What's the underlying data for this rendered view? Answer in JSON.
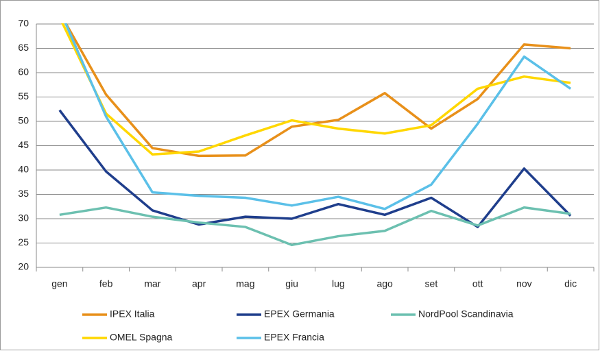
{
  "chart_data": {
    "type": "line",
    "categories": [
      "gen",
      "feb",
      "mar",
      "apr",
      "mag",
      "giu",
      "lug",
      "ago",
      "set",
      "ott",
      "nov",
      "dic"
    ],
    "series": [
      {
        "name": "IPEX Italia",
        "color": "#e8901a",
        "values": [
          72.4,
          55.5,
          44.5,
          42.9,
          43.0,
          48.9,
          50.3,
          55.8,
          48.5,
          54.6,
          65.8,
          65.0
        ]
      },
      {
        "name": "EPEX Germania",
        "color": "#1f3e8c",
        "values": [
          52.3,
          39.7,
          31.7,
          28.8,
          30.4,
          30.0,
          33.0,
          30.8,
          34.3,
          28.3,
          40.3,
          30.6
        ]
      },
      {
        "name": "NordPool Scandinavia",
        "color": "#6cc0b0",
        "values": [
          30.8,
          32.3,
          30.4,
          29.2,
          28.3,
          24.6,
          26.4,
          27.5,
          31.6,
          28.6,
          32.3,
          31.0
        ]
      },
      {
        "name": "OMEL Spagna",
        "color": "#ffd700",
        "values": [
          71.4,
          51.6,
          43.2,
          43.8,
          47.1,
          50.2,
          48.5,
          47.5,
          49.2,
          56.7,
          59.2,
          57.9
        ]
      },
      {
        "name": "EPEX Francia",
        "color": "#5bc0e8",
        "values": [
          73.0,
          51.0,
          35.4,
          34.7,
          34.3,
          32.7,
          34.5,
          32.0,
          37.0,
          49.5,
          63.3,
          56.7
        ]
      }
    ],
    "ylim": [
      20,
      70
    ],
    "yticks": [
      20,
      25,
      30,
      35,
      40,
      45,
      50,
      55,
      60,
      65,
      70
    ],
    "grid": true
  }
}
